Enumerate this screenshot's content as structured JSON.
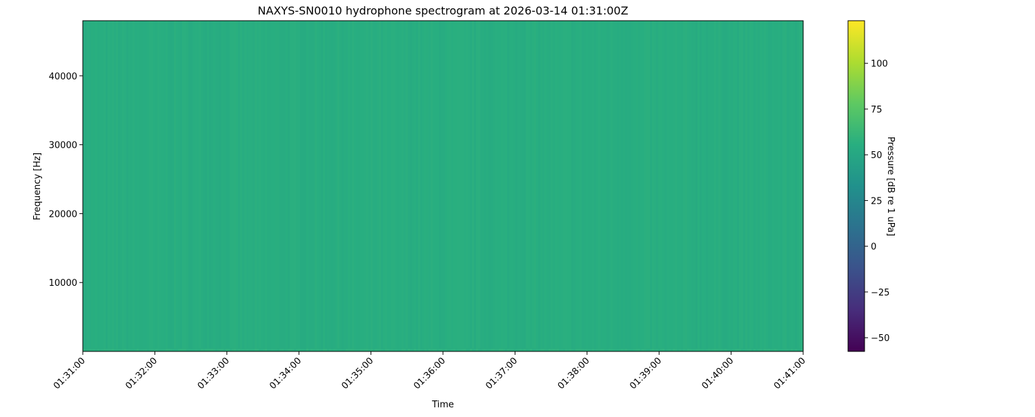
{
  "chart_data": {
    "type": "heatmap",
    "title": "NAXYS-SN0010 hydrophone spectrogram at 2026-03-14 01:31:00Z",
    "xlabel": "Time",
    "ylabel": "Frequency [Hz]",
    "x_ticks": [
      "01:31:00",
      "01:32:00",
      "01:33:00",
      "01:34:00",
      "01:35:00",
      "01:36:00",
      "01:37:00",
      "01:38:00",
      "01:39:00",
      "01:40:00",
      "01:41:00"
    ],
    "xlim": [
      "01:31:00",
      "01:41:00"
    ],
    "y_ticks": [
      10000,
      20000,
      30000,
      40000
    ],
    "ylim": [
      0,
      48000
    ],
    "colorbar": {
      "label": "Pressure [dB re 1 uPa]",
      "colormap": "viridis",
      "ticks": [
        -50,
        -25,
        0,
        25,
        50,
        75,
        100
      ],
      "tick_labels": [
        "−50",
        "−25",
        "0",
        "25",
        "50",
        "75",
        "100"
      ],
      "range": [
        -57.5,
        123.3
      ]
    },
    "approx_level_db": 55,
    "grid": false
  }
}
